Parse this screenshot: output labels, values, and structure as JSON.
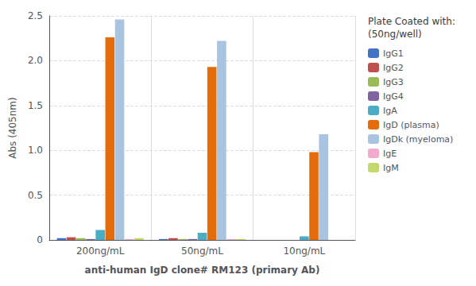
{
  "chart_data": {
    "type": "bar",
    "categories": [
      "200ng/mL",
      "50ng/mL",
      "10ng/mL"
    ],
    "series": [
      {
        "name": "IgG1",
        "color": "#4472C4",
        "values": [
          0.02,
          0.01,
          0.0
        ]
      },
      {
        "name": "IgG2",
        "color": "#C0504D",
        "values": [
          0.03,
          0.02,
          0.0
        ]
      },
      {
        "name": "IgG3",
        "color": "#9BBB59",
        "values": [
          0.02,
          0.01,
          0.0
        ]
      },
      {
        "name": "IgG4",
        "color": "#8064A2",
        "values": [
          0.01,
          0.01,
          0.0
        ]
      },
      {
        "name": "IgA",
        "color": "#4BACC6",
        "values": [
          0.11,
          0.08,
          0.04
        ]
      },
      {
        "name": "IgD (plasma)",
        "color": "#E46C0A",
        "values": [
          2.26,
          1.93,
          0.98
        ]
      },
      {
        "name": "IgDk (myeloma)",
        "color": "#A8C4E0",
        "values": [
          2.46,
          2.22,
          1.18
        ]
      },
      {
        "name": "IgE",
        "color": "#F2ABCC",
        "values": [
          0.01,
          0.01,
          0.0
        ]
      },
      {
        "name": "IgM",
        "color": "#C3D96C",
        "values": [
          0.02,
          0.01,
          0.0
        ]
      }
    ],
    "ylabel": "Abs (405nm)",
    "xlabel": "anti-human IgD clone# RM123 (primary Ab)",
    "legend_title": "Plate Coated with:\n(50ng/well)",
    "ylim": [
      0,
      2.5
    ],
    "yticks": [
      0,
      0.5,
      {
        "value": 1,
        "label": "1.0"
      },
      1.5,
      {
        "value": 2,
        "label": "2.0"
      },
      2.5
    ],
    "grid": true,
    "legend": "right"
  }
}
